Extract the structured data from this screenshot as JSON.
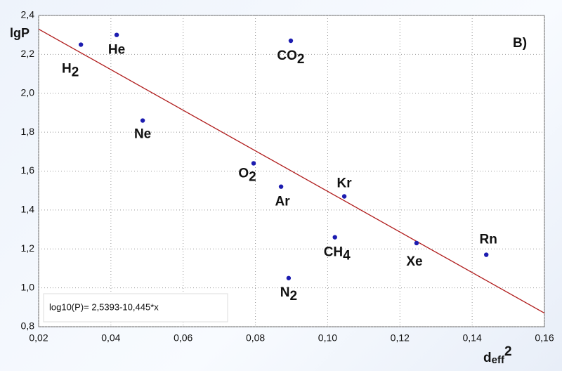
{
  "chart_data": {
    "type": "scatter",
    "panel_label": "В)",
    "y_label": "lgP",
    "x_label": {
      "text": "d",
      "sub": "eff",
      "sup": "2"
    },
    "annotation": "log10(P)= 2,5393-10,445*x",
    "color": "#1c1cb0",
    "line_color": "#b01c1c",
    "grid": true,
    "points": [
      {
        "text": "H",
        "sub": "2"
      },
      {
        "text": "He"
      },
      {
        "text": "CO",
        "sub": "2"
      },
      {
        "text": "Ne"
      },
      {
        "text": "O",
        "sub": "2"
      },
      {
        "text": "Ar"
      },
      {
        "text": "Kr"
      },
      {
        "text": "CH",
        "sub": "4"
      },
      {
        "text": "Xe"
      },
      {
        "text": "Rn"
      },
      {
        "text": "N",
        "sub": "2"
      }
    ],
    "x": [
      0.0317,
      0.0416,
      0.0898,
      0.0488,
      0.0795,
      0.0871,
      0.1046,
      0.102,
      0.1246,
      0.1439,
      0.0892
    ],
    "y": [
      2.25,
      2.3,
      2.27,
      1.86,
      1.64,
      1.52,
      1.47,
      1.26,
      1.23,
      1.17,
      1.05
    ],
    "fit_line": {
      "x": [
        0.02,
        0.16
      ],
      "y": [
        2.33,
        0.87
      ]
    },
    "xlim": [
      0.02,
      0.16
    ],
    "ylim": [
      0.8,
      2.4
    ],
    "xticks": [
      {
        "value": 0.02,
        "label": "0,02"
      },
      {
        "value": 0.04,
        "label": "0,04"
      },
      {
        "value": 0.06,
        "label": "0,06"
      },
      {
        "value": 0.08,
        "label": "0,08"
      },
      {
        "value": 0.1,
        "label": "0,10"
      },
      {
        "value": 0.12,
        "label": "0,12"
      },
      {
        "value": 0.14,
        "label": "0,14"
      },
      {
        "value": 0.16,
        "label": "0,16"
      }
    ],
    "yticks": [
      {
        "value": 0.8,
        "label": "0,8"
      },
      {
        "value": 1.0,
        "label": "1,0"
      },
      {
        "value": 1.2,
        "label": "1,2"
      },
      {
        "value": 1.4,
        "label": "1,4"
      },
      {
        "value": 1.6,
        "label": "1,6"
      },
      {
        "value": 1.8,
        "label": "1,8"
      },
      {
        "value": 2.0,
        "label": "2,0"
      },
      {
        "value": 2.2,
        "label": "2,2"
      },
      {
        "value": 2.4,
        "label": "2,4"
      }
    ]
  }
}
